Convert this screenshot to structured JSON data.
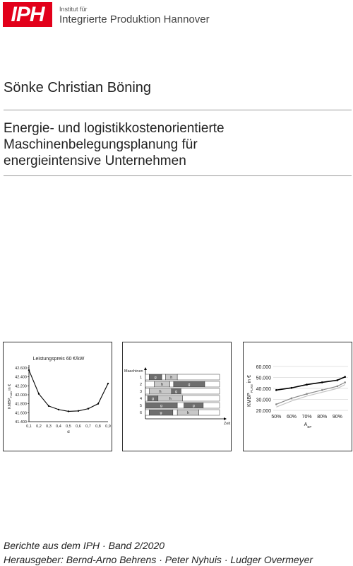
{
  "header": {
    "logo_text": "IPH",
    "institute_small": "Institut für",
    "institute_large": "Integrierte Produktion Hannover",
    "logo_color": "#e2001a"
  },
  "author": "Sönke Christian Böning",
  "title_lines": [
    "Energie- und logistikkostenorientierte",
    "Maschinenbelegungsplanung für",
    "energieintensive Unternehmen"
  ],
  "chart_data": [
    {
      "type": "line",
      "title": "Leistungspreis 60 €/kW",
      "xlabel": "α",
      "ylabel_main": "KMBP",
      "ylabel_sub": "PLAN",
      "ylabel_unit": " in €",
      "x": [
        0.1,
        0.2,
        0.3,
        0.4,
        0.5,
        0.6,
        0.7,
        0.8,
        0.9
      ],
      "x_ticks": [
        "0,1",
        "0,2",
        "0,3",
        "0,4",
        "0,5",
        "0,6",
        "0,7",
        "0,8",
        "0,9"
      ],
      "values": [
        42.55,
        42.02,
        41.75,
        41.67,
        41.63,
        41.64,
        41.69,
        41.8,
        42.25
      ],
      "ylim": [
        41.4,
        42.6
      ],
      "y_ticks": [
        41.4,
        41.6,
        41.8,
        42.0,
        42.2,
        42.4,
        42.6
      ],
      "y_tick_labels": [
        "41.400",
        "41.600",
        "41.800",
        "42.000",
        "42.200",
        "42.400",
        "42.600"
      ],
      "grid": false
    },
    {
      "type": "gantt",
      "ylabel": "Maschinen",
      "xlabel": "Zeit",
      "time_range": [
        0,
        100
      ],
      "rows": [
        {
          "machine": "1",
          "blocks": [
            {
              "start": 0,
              "end": 5,
              "shade": "white",
              "label": ""
            },
            {
              "start": 5,
              "end": 22,
              "shade": "dark",
              "label": "g"
            },
            {
              "start": 22,
              "end": 27,
              "shade": "white",
              "label": ""
            },
            {
              "start": 27,
              "end": 43,
              "shade": "light",
              "label": "h"
            },
            {
              "start": 43,
              "end": 100,
              "shade": "white",
              "label": ""
            }
          ]
        },
        {
          "machine": "2",
          "blocks": [
            {
              "start": 0,
              "end": 12,
              "shade": "white",
              "label": ""
            },
            {
              "start": 12,
              "end": 33,
              "shade": "light",
              "label": "h"
            },
            {
              "start": 33,
              "end": 38,
              "shade": "white",
              "label": ""
            },
            {
              "start": 38,
              "end": 80,
              "shade": "dark",
              "label": "g"
            },
            {
              "start": 80,
              "end": 100,
              "shade": "white",
              "label": ""
            }
          ]
        },
        {
          "machine": "3",
          "blocks": [
            {
              "start": 0,
              "end": 5,
              "shade": "white",
              "label": ""
            },
            {
              "start": 5,
              "end": 35,
              "shade": "light",
              "label": "h"
            },
            {
              "start": 35,
              "end": 48,
              "shade": "dark",
              "label": "g"
            },
            {
              "start": 48,
              "end": 100,
              "shade": "white",
              "label": ""
            }
          ]
        },
        {
          "machine": "4",
          "blocks": [
            {
              "start": 0,
              "end": 3,
              "shade": "white",
              "label": ""
            },
            {
              "start": 3,
              "end": 17,
              "shade": "dark",
              "label": "g"
            },
            {
              "start": 17,
              "end": 50,
              "shade": "light",
              "label": "h"
            },
            {
              "start": 50,
              "end": 100,
              "shade": "white",
              "label": ""
            }
          ]
        },
        {
          "machine": "5",
          "blocks": [
            {
              "start": 0,
              "end": 43,
              "shade": "dark",
              "label": "g"
            },
            {
              "start": 43,
              "end": 52,
              "shade": "white",
              "label": ""
            },
            {
              "start": 52,
              "end": 78,
              "shade": "dark",
              "label": "g"
            },
            {
              "start": 78,
              "end": 100,
              "shade": "white",
              "label": ""
            }
          ]
        },
        {
          "machine": "6",
          "blocks": [
            {
              "start": 0,
              "end": 5,
              "shade": "white",
              "label": ""
            },
            {
              "start": 5,
              "end": 37,
              "shade": "dark",
              "label": "g"
            },
            {
              "start": 37,
              "end": 43,
              "shade": "white",
              "label": ""
            },
            {
              "start": 43,
              "end": 72,
              "shade": "light",
              "label": "h"
            },
            {
              "start": 72,
              "end": 100,
              "shade": "white",
              "label": ""
            }
          ]
        }
      ]
    },
    {
      "type": "line",
      "xlabel_main": "A",
      "xlabel_sub": "BP",
      "ylabel_main": "KMBP",
      "ylabel_sub": "PLAN",
      "ylabel_unit": " in €",
      "x": [
        50,
        60,
        70,
        80,
        90,
        95
      ],
      "x_ticks": [
        "50%",
        "60%",
        "70%",
        "80%",
        "90%"
      ],
      "x_tick_values": [
        50,
        60,
        70,
        80,
        90
      ],
      "xlim": [
        48,
        97
      ],
      "ylim": [
        20000,
        60000
      ],
      "y_ticks": [
        20000,
        30000,
        40000,
        50000,
        60000
      ],
      "y_tick_labels": [
        "20.000",
        "30.000",
        "40.000",
        "50.000",
        "60.000"
      ],
      "series": [
        {
          "values": [
            38500,
            40500,
            43500,
            45500,
            47500,
            50500
          ],
          "color": "#000000",
          "markers": true,
          "width": 1.6
        },
        {
          "values": [
            25500,
            31000,
            35000,
            38500,
            42000,
            45500
          ],
          "color": "#8a8a8a",
          "markers": true,
          "width": 1.2
        },
        {
          "values": [
            23000,
            28500,
            33000,
            36500,
            40000,
            43500
          ],
          "color": "#c4c4c4",
          "markers": false,
          "width": 1.2
        }
      ],
      "grid": "horizontal"
    }
  ],
  "footer": {
    "series": "Berichte aus dem IPH · Band 2/2020",
    "editors": "Herausgeber: Bernd-Arno Behrens · Peter Nyhuis · Ludger Overmeyer"
  }
}
